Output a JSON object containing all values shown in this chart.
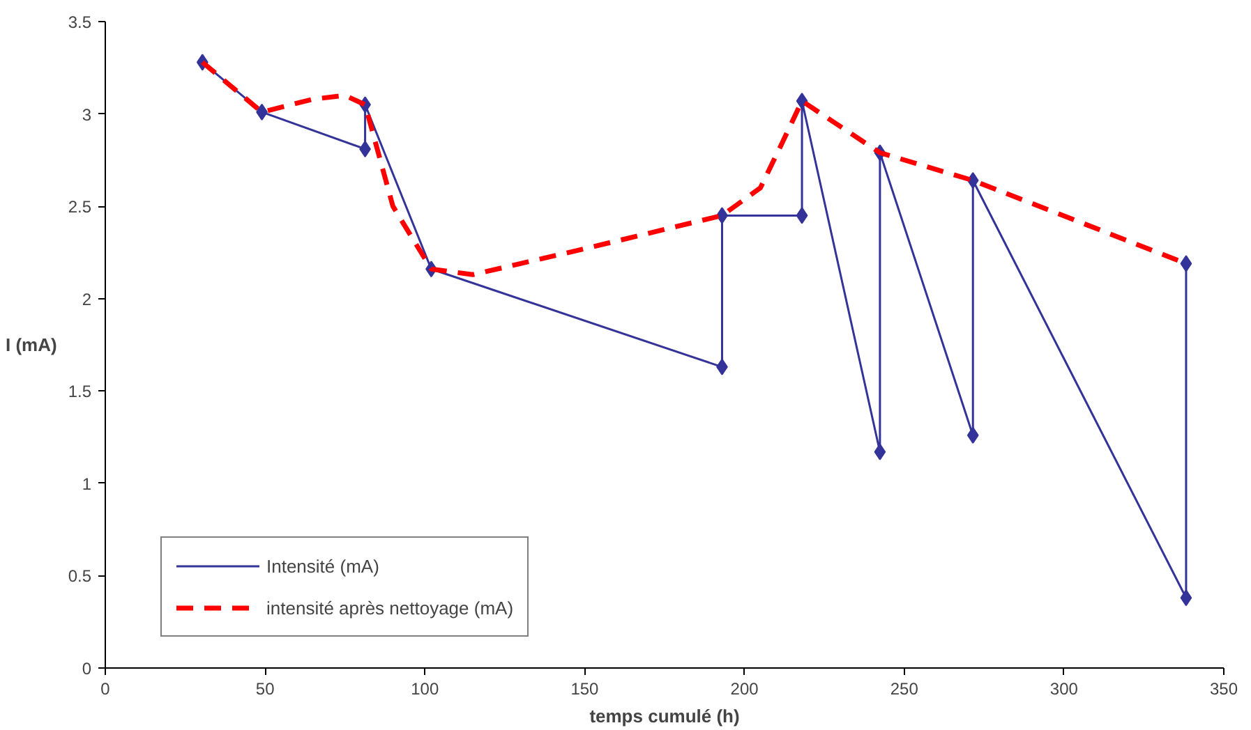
{
  "chart_data": {
    "type": "line",
    "xlabel": "temps cumulé (h)",
    "ylabel": "I (mA)",
    "xlim": [
      0,
      350
    ],
    "xticks": [
      0,
      50,
      100,
      150,
      200,
      250,
      300,
      350
    ],
    "ylim": [
      0,
      3.5
    ],
    "yticks": [
      0,
      0.5,
      1,
      1.5,
      2,
      2.5,
      3,
      3.5
    ],
    "grid": false,
    "legend": "bottom left",
    "series": [
      {
        "name": "Intensité (mA)",
        "color": "#333399",
        "marker": "diamond",
        "line_style": "solid",
        "x": [
          30.4,
          49,
          81.3,
          81.3,
          102,
          193,
          193,
          218,
          218,
          242.4,
          242.4,
          271.5,
          271.5,
          338.2,
          338.2
        ],
        "values": [
          3.28,
          3.01,
          2.81,
          3.05,
          2.16,
          1.63,
          2.45,
          2.45,
          3.07,
          1.17,
          2.79,
          1.26,
          2.64,
          0.38,
          2.19
        ]
      },
      {
        "name": "intensité après nettoyage (mA)",
        "color": "#ff0000",
        "marker": "none",
        "line_style": "dashed",
        "x": [
          30.4,
          49,
          65,
          75,
          81.3,
          90,
          102,
          115,
          150,
          193,
          205,
          212,
          218,
          242.4,
          271.5,
          338.2
        ],
        "values": [
          3.28,
          3.01,
          3.08,
          3.1,
          3.05,
          2.5,
          2.16,
          2.13,
          2.27,
          2.45,
          2.6,
          2.85,
          3.07,
          2.79,
          2.64,
          2.19
        ]
      }
    ]
  }
}
